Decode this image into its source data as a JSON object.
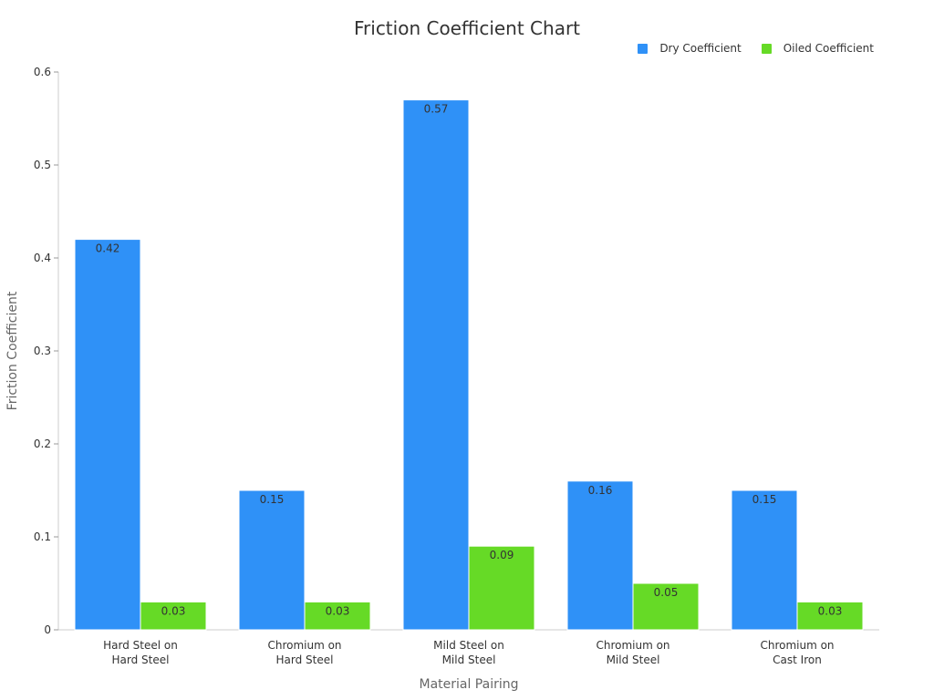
{
  "chart_data": {
    "type": "bar",
    "title": "Friction Coefficient Chart",
    "xlabel": "Material Pairing",
    "ylabel": "Friction Coefficient",
    "ylim": [
      0,
      0.6
    ],
    "yticks": [
      "0",
      "0.1",
      "0.2",
      "0.3",
      "0.4",
      "0.5",
      "0.6"
    ],
    "categories": [
      [
        "Hard Steel on",
        "Hard Steel"
      ],
      [
        "Chromium on",
        "Hard Steel"
      ],
      [
        "Mild Steel on",
        "Mild Steel"
      ],
      [
        "Chromium on",
        "Mild Steel"
      ],
      [
        "Chromium on",
        "Cast Iron"
      ]
    ],
    "series": [
      {
        "name": "Dry Coefficient",
        "color": "#2f91f7",
        "values": [
          0.42,
          0.15,
          0.57,
          0.16,
          0.15
        ],
        "labels": [
          "0.42",
          "0.15",
          "0.57",
          "0.16",
          "0.15"
        ]
      },
      {
        "name": "Oiled Coefficient",
        "color": "#66da26",
        "values": [
          0.03,
          0.03,
          0.09,
          0.05,
          0.03
        ],
        "labels": [
          "0.03",
          "0.03",
          "0.09",
          "0.05",
          "0.03"
        ]
      }
    ],
    "legend": "top-right",
    "grid": false
  }
}
